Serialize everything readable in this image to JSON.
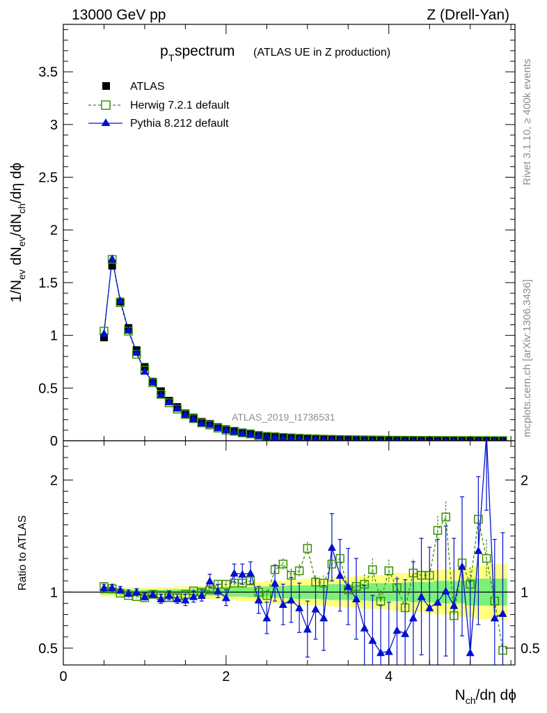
{
  "header": {
    "left_label": "13000 GeV pp",
    "right_label": "Z (Drell-Yan)"
  },
  "side_text": {
    "rivet": "Rivet 3.1.10, ≥ 400k events",
    "mcplots": "mcplots.cern.ch [arXiv:1306.3436]"
  },
  "colors": {
    "atlas": "#000000",
    "herwig": "#3a8f00",
    "pythia": "#0010d0",
    "band_inner": "#7af07a",
    "band_outer": "#ffff80"
  },
  "chart_data": [
    {
      "type": "line",
      "panel": "main",
      "title_main": "p",
      "title_sub": "T",
      "title_rest": " spectrum",
      "title_note": "(ATLAS UE in Z production)",
      "watermark": "ATLAS_2019_I1736531",
      "xlabel": "",
      "ylabel": "1/N_ev dN_ev/dN_ch/dη dϕ",
      "xlim": [
        0,
        5.55
      ],
      "ylim": [
        0,
        3.95
      ],
      "yticks": [
        0,
        0.5,
        1,
        1.5,
        2,
        2.5,
        3,
        3.5
      ],
      "ytick_labels": [
        "0",
        "0.5",
        "1",
        "1.5",
        "2",
        "2.5",
        "3",
        "3.5"
      ],
      "legend": [
        "ATLAS",
        "Herwig 7.2.1 default",
        "Pythia 8.212 default"
      ],
      "x": [
        0.5,
        0.6,
        0.7,
        0.8,
        0.9,
        1.0,
        1.1,
        1.2,
        1.3,
        1.4,
        1.5,
        1.6,
        1.7,
        1.8,
        1.9,
        2.0,
        2.1,
        2.2,
        2.3,
        2.4,
        2.5,
        2.6,
        2.7,
        2.8,
        2.9,
        3.0,
        3.1,
        3.2,
        3.3,
        3.4,
        3.5,
        3.6,
        3.7,
        3.8,
        3.9,
        4.0,
        4.1,
        4.2,
        4.3,
        4.4,
        4.5,
        4.6,
        4.7,
        4.8,
        4.9,
        5.0,
        5.1,
        5.2,
        5.3,
        5.4
      ],
      "series": [
        {
          "name": "ATLAS",
          "values": [
            0.98,
            1.66,
            1.32,
            1.07,
            0.86,
            0.7,
            0.56,
            0.47,
            0.38,
            0.32,
            0.26,
            0.22,
            0.18,
            0.16,
            0.13,
            0.11,
            0.095,
            0.08,
            0.07,
            0.055,
            0.045,
            0.04,
            0.034,
            0.03,
            0.026,
            0.023,
            0.02,
            0.018,
            0.016,
            0.014,
            0.012,
            0.011,
            0.01,
            0.009,
            0.008,
            0.007,
            0.0065,
            0.006,
            0.0055,
            0.005,
            0.0045,
            0.004,
            0.0038,
            0.0035,
            0.0032,
            0.003,
            0.0028,
            0.0026,
            0.0024,
            0.0022
          ]
        },
        {
          "name": "Herwig 7.2.1 default",
          "values": [
            1.04,
            1.72,
            1.31,
            1.04,
            0.82,
            0.67,
            0.55,
            0.44,
            0.36,
            0.3,
            0.25,
            0.21,
            0.17,
            0.15,
            0.12,
            0.1,
            0.09,
            0.075,
            0.065,
            0.05,
            0.042,
            0.038,
            0.032,
            0.028,
            0.024,
            0.021,
            0.018,
            0.016,
            0.014,
            0.012,
            0.011,
            0.01,
            0.009,
            0.008,
            0.007,
            0.006,
            0.0055,
            0.005,
            0.0045,
            0.004,
            0.0038,
            0.0036,
            0.0034,
            0.0032,
            0.003,
            0.0028,
            0.0026,
            0.0024,
            0.0022,
            0.002
          ]
        },
        {
          "name": "Pythia 8.212 default",
          "values": [
            1.02,
            1.73,
            1.33,
            1.05,
            0.84,
            0.66,
            0.56,
            0.44,
            0.37,
            0.31,
            0.25,
            0.21,
            0.17,
            0.155,
            0.125,
            0.105,
            0.09,
            0.075,
            0.065,
            0.05,
            0.04,
            0.036,
            0.03,
            0.027,
            0.022,
            0.02,
            0.017,
            0.015,
            0.014,
            0.012,
            0.01,
            0.009,
            0.008,
            0.007,
            0.0065,
            0.006,
            0.0055,
            0.005,
            0.0045,
            0.004,
            0.0038,
            0.0036,
            0.0034,
            0.003,
            0.0028,
            0.0026,
            0.0024,
            0.0022,
            0.002,
            0.0018
          ]
        }
      ]
    },
    {
      "type": "line",
      "panel": "ratio",
      "xlabel": "N_ch/dη dϕ",
      "ylabel": "Ratio to ATLAS",
      "xlim": [
        0,
        5.55
      ],
      "ylim": [
        0.35,
        2.35
      ],
      "xticks": [
        0,
        2,
        4
      ],
      "xtick_labels": [
        "0",
        "2",
        "4"
      ],
      "yticks": [
        0.5,
        1,
        2
      ],
      "ytick_labels": [
        "0.5",
        "1",
        "2"
      ],
      "x": [
        0.5,
        0.6,
        0.7,
        0.8,
        0.9,
        1.0,
        1.1,
        1.2,
        1.3,
        1.4,
        1.5,
        1.6,
        1.7,
        1.8,
        1.9,
        2.0,
        2.1,
        2.2,
        2.3,
        2.4,
        2.5,
        2.6,
        2.7,
        2.8,
        2.9,
        3.0,
        3.1,
        3.2,
        3.3,
        3.4,
        3.5,
        3.6,
        3.7,
        3.8,
        3.9,
        4.0,
        4.1,
        4.2,
        4.3,
        4.4,
        4.5,
        4.6,
        4.7,
        4.8,
        4.9,
        5.0,
        5.1,
        5.2,
        5.3,
        5.4
      ],
      "band_inner": [
        0.02,
        0.02,
        0.02,
        0.02,
        0.02,
        0.02,
        0.02,
        0.02,
        0.025,
        0.025,
        0.025,
        0.03,
        0.03,
        0.03,
        0.035,
        0.04,
        0.04,
        0.04,
        0.045,
        0.05,
        0.05,
        0.05,
        0.055,
        0.06,
        0.06,
        0.06,
        0.06,
        0.065,
        0.07,
        0.07,
        0.07,
        0.07,
        0.075,
        0.08,
        0.08,
        0.08,
        0.08,
        0.085,
        0.09,
        0.09,
        0.09,
        0.1,
        0.1,
        0.1,
        0.1,
        0.12,
        0.12,
        0.12,
        0.12,
        0.12
      ],
      "band_outer": [
        0.04,
        0.04,
        0.04,
        0.04,
        0.04,
        0.04,
        0.04,
        0.045,
        0.045,
        0.05,
        0.05,
        0.05,
        0.055,
        0.06,
        0.06,
        0.07,
        0.07,
        0.08,
        0.08,
        0.09,
        0.1,
        0.1,
        0.1,
        0.11,
        0.11,
        0.12,
        0.12,
        0.12,
        0.13,
        0.13,
        0.14,
        0.14,
        0.15,
        0.15,
        0.15,
        0.16,
        0.17,
        0.17,
        0.18,
        0.18,
        0.19,
        0.2,
        0.2,
        0.2,
        0.22,
        0.22,
        0.24,
        0.24,
        0.25,
        0.25
      ],
      "series": [
        {
          "name": "Herwig 7.2.1 default",
          "values": [
            1.05,
            1.03,
            0.99,
            0.97,
            0.96,
            0.95,
            0.98,
            0.97,
            0.95,
            0.95,
            0.98,
            1.01,
            1.0,
            1.02,
            1.07,
            1.07,
            1.08,
            1.08,
            1.1,
            1.0,
            0.97,
            1.2,
            1.25,
            1.15,
            1.19,
            1.39,
            1.09,
            1.08,
            1.25,
            1.3,
            1.02,
            1.05,
            1.07,
            1.2,
            0.92,
            1.19,
            1.04,
            0.86,
            1.17,
            1.15,
            1.15,
            1.55,
            1.67,
            0.79,
            1.26,
            1.07,
            1.65,
            1.3,
            0.92,
            0.48
          ],
          "err": [
            0.02,
            0.02,
            0.02,
            0.02,
            0.02,
            0.02,
            0.02,
            0.02,
            0.02,
            0.02,
            0.02,
            0.02,
            0.02,
            0.03,
            0.03,
            0.03,
            0.03,
            0.04,
            0.04,
            0.04,
            0.05,
            0.05,
            0.05,
            0.06,
            0.06,
            0.06,
            0.06,
            0.07,
            0.07,
            0.08,
            0.08,
            0.08,
            0.09,
            0.1,
            0.1,
            0.1,
            0.1,
            0.11,
            0.12,
            0.12,
            0.12,
            0.13,
            0.14,
            0.14,
            0.15,
            0.15,
            0.16,
            0.17,
            0.18,
            0.2
          ]
        },
        {
          "name": "Pythia 8.212 default",
          "values": [
            1.04,
            1.04,
            1.02,
            0.99,
            1.0,
            0.96,
            0.98,
            0.94,
            0.97,
            0.94,
            0.93,
            0.96,
            0.97,
            1.1,
            1.01,
            0.95,
            1.17,
            1.16,
            1.17,
            0.93,
            0.77,
            1.08,
            0.89,
            0.93,
            0.86,
            0.67,
            0.85,
            0.77,
            1.4,
            1.15,
            1.05,
            0.94,
            0.68,
            0.57,
            0.46,
            0.47,
            0.66,
            0.63,
            0.77,
            0.96,
            0.86,
            0.91,
            1.01,
            0.88,
            1.23,
            0.46,
            1.37,
            2.41,
            0.77,
            0.81
          ],
          "err": [
            0.03,
            0.03,
            0.03,
            0.03,
            0.03,
            0.03,
            0.03,
            0.04,
            0.04,
            0.04,
            0.05,
            0.05,
            0.05,
            0.06,
            0.06,
            0.07,
            0.08,
            0.09,
            0.1,
            0.12,
            0.14,
            0.16,
            0.18,
            0.2,
            0.22,
            0.25,
            0.27,
            0.29,
            0.3,
            0.32,
            0.34,
            0.36,
            0.38,
            0.4,
            0.42,
            0.44,
            0.46,
            0.48,
            0.5,
            0.52,
            0.54,
            0.56,
            0.58,
            0.6,
            0.62,
            0.64,
            0.66,
            0.68,
            0.7,
            0.72
          ]
        }
      ]
    }
  ]
}
